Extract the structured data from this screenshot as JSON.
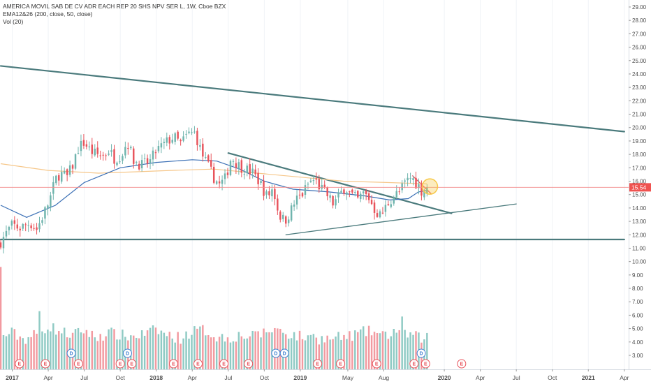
{
  "header": {
    "title_line": "AMERICA MOVIL SAB DE CV ADR EACH REP 20 SHS NPV SER L, 1W, Cboe BZX",
    "indicator_line": "EMA12&26 (200, close, 50, close)",
    "volume_line": "Vol (20)"
  },
  "colors": {
    "up": "#6fb4ad",
    "down": "#e8535b",
    "vol_up": "#8fcac4",
    "vol_down": "#f29aa0",
    "ema200": "#f6c78a",
    "ema50": "#3a6fb5",
    "trendline": "#4a7a7c",
    "current_price_line": "#f28b8b",
    "price_tag": "#ef5350",
    "event_earnings": "#e8535b",
    "event_dividend": "#3d7fd0",
    "highlight_circle": "#f7c948"
  },
  "chart_data": {
    "type": "candlestick",
    "symbol": "AMERICA MOVIL SAB DE CV ADR EACH REP 20 SHS NPV SER L",
    "interval": "1W",
    "exchange": "Cboe BZX",
    "last_price": "15.54",
    "price_axis": {
      "range": [
        2.6,
        29.4
      ],
      "tick_labels": [
        "29.00",
        "28.00",
        "27.00",
        "26.00",
        "25.00",
        "24.00",
        "23.00",
        "22.00",
        "21.00",
        "20.00",
        "19.00",
        "18.00",
        "17.00",
        "16.00",
        "15.00",
        "14.00",
        "13.00",
        "12.00",
        "11.00",
        "10.00",
        "9.00",
        "8.00",
        "7.00",
        "6.00",
        "5.00",
        "4.00",
        "3.00"
      ]
    },
    "time_axis": {
      "labels": [
        {
          "t": 2017.0,
          "text": "2017",
          "bold": true
        },
        {
          "t": 2017.25,
          "text": "Apr",
          "bold": false
        },
        {
          "t": 2017.5,
          "text": "Jul",
          "bold": false
        },
        {
          "t": 2017.75,
          "text": "Oct",
          "bold": false
        },
        {
          "t": 2018.0,
          "text": "2018",
          "bold": true
        },
        {
          "t": 2018.25,
          "text": "Apr",
          "bold": false
        },
        {
          "t": 2018.5,
          "text": "Jul",
          "bold": false
        },
        {
          "t": 2018.75,
          "text": "Oct",
          "bold": false
        },
        {
          "t": 2019.0,
          "text": "2019",
          "bold": true
        },
        {
          "t": 2019.33,
          "text": "May",
          "bold": false
        },
        {
          "t": 2019.58,
          "text": "Aug",
          "bold": false
        },
        {
          "t": 2020.0,
          "text": "2020",
          "bold": true
        },
        {
          "t": 2020.25,
          "text": "Apr",
          "bold": false
        },
        {
          "t": 2020.5,
          "text": "Jul",
          "bold": false
        },
        {
          "t": 2020.75,
          "text": "Oct",
          "bold": false
        },
        {
          "t": 2021.0,
          "text": "2021",
          "bold": true
        },
        {
          "t": 2021.25,
          "text": "Apr",
          "bold": false
        }
      ]
    },
    "close_path": [
      [
        2016.92,
        11.5
      ],
      [
        2016.97,
        12.3
      ],
      [
        2017.0,
        12.7
      ],
      [
        2017.06,
        12.5
      ],
      [
        2017.12,
        12.9
      ],
      [
        2017.17,
        12.4
      ],
      [
        2017.22,
        13.6
      ],
      [
        2017.26,
        14.6
      ],
      [
        2017.3,
        16.1
      ],
      [
        2017.33,
        16.6
      ],
      [
        2017.38,
        16.3
      ],
      [
        2017.42,
        17.2
      ],
      [
        2017.46,
        18.5
      ],
      [
        2017.5,
        18.9
      ],
      [
        2017.54,
        18.3
      ],
      [
        2017.58,
        18.0
      ],
      [
        2017.63,
        17.9
      ],
      [
        2017.67,
        18.3
      ],
      [
        2017.71,
        17.7
      ],
      [
        2017.76,
        18.0
      ],
      [
        2017.8,
        19.0
      ],
      [
        2017.84,
        17.6
      ],
      [
        2017.9,
        17.2
      ],
      [
        2017.96,
        17.5
      ],
      [
        2018.0,
        18.3
      ],
      [
        2018.04,
        18.6
      ],
      [
        2018.08,
        19.0
      ],
      [
        2018.12,
        19.3
      ],
      [
        2018.17,
        18.8
      ],
      [
        2018.22,
        19.5
      ],
      [
        2018.27,
        19.6
      ],
      [
        2018.31,
        18.2
      ],
      [
        2018.35,
        17.3
      ],
      [
        2018.4,
        16.3
      ],
      [
        2018.44,
        15.7
      ],
      [
        2018.48,
        16.2
      ],
      [
        2018.52,
        17.8
      ],
      [
        2018.57,
        17.2
      ],
      [
        2018.62,
        16.9
      ],
      [
        2018.67,
        16.6
      ],
      [
        2018.72,
        15.9
      ],
      [
        2018.77,
        14.8
      ],
      [
        2018.81,
        15.5
      ],
      [
        2018.85,
        13.6
      ],
      [
        2018.89,
        13.0
      ],
      [
        2018.93,
        13.7
      ],
      [
        2018.97,
        14.6
      ],
      [
        2019.02,
        15.1
      ],
      [
        2019.06,
        15.9
      ],
      [
        2019.1,
        16.1
      ],
      [
        2019.14,
        15.5
      ],
      [
        2019.19,
        14.9
      ],
      [
        2019.23,
        14.3
      ],
      [
        2019.27,
        14.9
      ],
      [
        2019.31,
        15.6
      ],
      [
        2019.35,
        15.0
      ],
      [
        2019.4,
        14.6
      ],
      [
        2019.44,
        15.1
      ],
      [
        2019.48,
        14.7
      ],
      [
        2019.52,
        13.8
      ],
      [
        2019.56,
        13.4
      ],
      [
        2019.61,
        14.4
      ],
      [
        2019.65,
        14.9
      ],
      [
        2019.69,
        15.2
      ],
      [
        2019.73,
        15.9
      ],
      [
        2019.77,
        16.3
      ],
      [
        2019.81,
        15.8
      ],
      [
        2019.85,
        15.2
      ],
      [
        2019.88,
        15.54
      ]
    ],
    "series": [
      {
        "name": "EMA12&26 (200, close)",
        "points": [
          [
            2016.92,
            17.3
          ],
          [
            2017.25,
            16.8
          ],
          [
            2017.6,
            16.6
          ],
          [
            2017.85,
            16.7
          ],
          [
            2018.1,
            16.8
          ],
          [
            2018.4,
            16.9
          ],
          [
            2018.7,
            16.6
          ],
          [
            2019.0,
            16.3
          ],
          [
            2019.3,
            16.0
          ],
          [
            2019.6,
            15.9
          ],
          [
            2019.88,
            15.8
          ]
        ]
      },
      {
        "name": "EMA12&26 (50, close)",
        "points": [
          [
            2016.92,
            14.2
          ],
          [
            2017.1,
            13.3
          ],
          [
            2017.3,
            14.2
          ],
          [
            2017.5,
            15.9
          ],
          [
            2017.75,
            17.0
          ],
          [
            2018.0,
            17.4
          ],
          [
            2018.25,
            17.6
          ],
          [
            2018.42,
            17.5
          ],
          [
            2018.58,
            16.9
          ],
          [
            2018.75,
            16.0
          ],
          [
            2018.95,
            15.4
          ],
          [
            2019.2,
            15.2
          ],
          [
            2019.45,
            14.9
          ],
          [
            2019.62,
            14.6
          ],
          [
            2019.75,
            14.7
          ],
          [
            2019.82,
            15.2
          ],
          [
            2019.88,
            15.3
          ]
        ]
      }
    ],
    "volume_shape": [
      [
        2016.92,
        4.4
      ],
      [
        2017.0,
        4.7
      ],
      [
        2017.08,
        4.2
      ],
      [
        2017.17,
        4.6
      ],
      [
        2017.25,
        5.2
      ],
      [
        2017.33,
        4.8
      ],
      [
        2017.42,
        4.5
      ],
      [
        2017.5,
        4.9
      ],
      [
        2017.58,
        4.3
      ],
      [
        2017.67,
        4.7
      ],
      [
        2017.75,
        4.5
      ],
      [
        2017.83,
        4.4
      ],
      [
        2017.92,
        4.6
      ],
      [
        2018.0,
        4.9
      ],
      [
        2018.08,
        4.5
      ],
      [
        2018.17,
        4.3
      ],
      [
        2018.25,
        4.8
      ],
      [
        2018.33,
        4.9
      ],
      [
        2018.42,
        4.4
      ],
      [
        2018.5,
        4.3
      ],
      [
        2018.58,
        4.5
      ],
      [
        2018.67,
        4.4
      ],
      [
        2018.75,
        4.7
      ],
      [
        2018.83,
        5.0
      ],
      [
        2018.92,
        4.6
      ],
      [
        2019.0,
        4.4
      ],
      [
        2019.08,
        4.3
      ],
      [
        2019.17,
        4.2
      ],
      [
        2019.25,
        4.3
      ],
      [
        2019.33,
        4.4
      ],
      [
        2019.42,
        4.7
      ],
      [
        2019.5,
        4.8
      ],
      [
        2019.58,
        4.4
      ],
      [
        2019.67,
        4.9
      ],
      [
        2019.75,
        4.6
      ],
      [
        2019.83,
        4.3
      ],
      [
        2019.88,
        4.4
      ]
    ],
    "volume_spikes": [
      [
        2016.925,
        9.6
      ],
      [
        2017.18,
        6.3
      ],
      [
        2017.62,
        4.6
      ],
      [
        2018.7,
        4.8
      ],
      [
        2019.1,
        4.6
      ],
      [
        2019.7,
        5.9
      ],
      [
        2019.73,
        4.9
      ]
    ],
    "trendlines": [
      {
        "name": "long-term-resistance",
        "from": [
          2016.92,
          24.6
        ],
        "to": [
          2021.25,
          19.7
        ]
      },
      {
        "name": "horizontal-support",
        "from": [
          2016.92,
          11.65
        ],
        "to": [
          2021.25,
          11.65
        ]
      },
      {
        "name": "triangle-upper",
        "from": [
          2018.5,
          18.1
        ],
        "to": [
          2020.05,
          13.6
        ]
      },
      {
        "name": "triangle-lower",
        "from": [
          2018.9,
          12.0
        ],
        "to": [
          2020.5,
          14.3
        ]
      },
      {
        "name": "short-downtrend",
        "from": [
          2019.78,
          16.4
        ],
        "to": [
          2019.91,
          15.05
        ]
      }
    ],
    "events": [
      {
        "t": 2017.05,
        "type": "E"
      },
      {
        "t": 2017.23,
        "type": "E"
      },
      {
        "t": 2017.41,
        "type": "D"
      },
      {
        "t": 2017.46,
        "type": "E"
      },
      {
        "t": 2017.75,
        "type": "E"
      },
      {
        "t": 2017.8,
        "type": "D"
      },
      {
        "t": 2017.83,
        "type": "E"
      },
      {
        "t": 2018.12,
        "type": "E"
      },
      {
        "t": 2018.29,
        "type": "E"
      },
      {
        "t": 2018.47,
        "type": "E"
      },
      {
        "t": 2018.64,
        "type": "E"
      },
      {
        "t": 2018.83,
        "type": "D"
      },
      {
        "t": 2018.89,
        "type": "D"
      },
      {
        "t": 2019.12,
        "type": "E"
      },
      {
        "t": 2019.28,
        "type": "E"
      },
      {
        "t": 2019.53,
        "type": "E"
      },
      {
        "t": 2019.79,
        "type": "E"
      },
      {
        "t": 2019.84,
        "type": "D"
      },
      {
        "t": 2019.87,
        "type": "E"
      },
      {
        "t": 2020.12,
        "type": "E"
      }
    ]
  }
}
